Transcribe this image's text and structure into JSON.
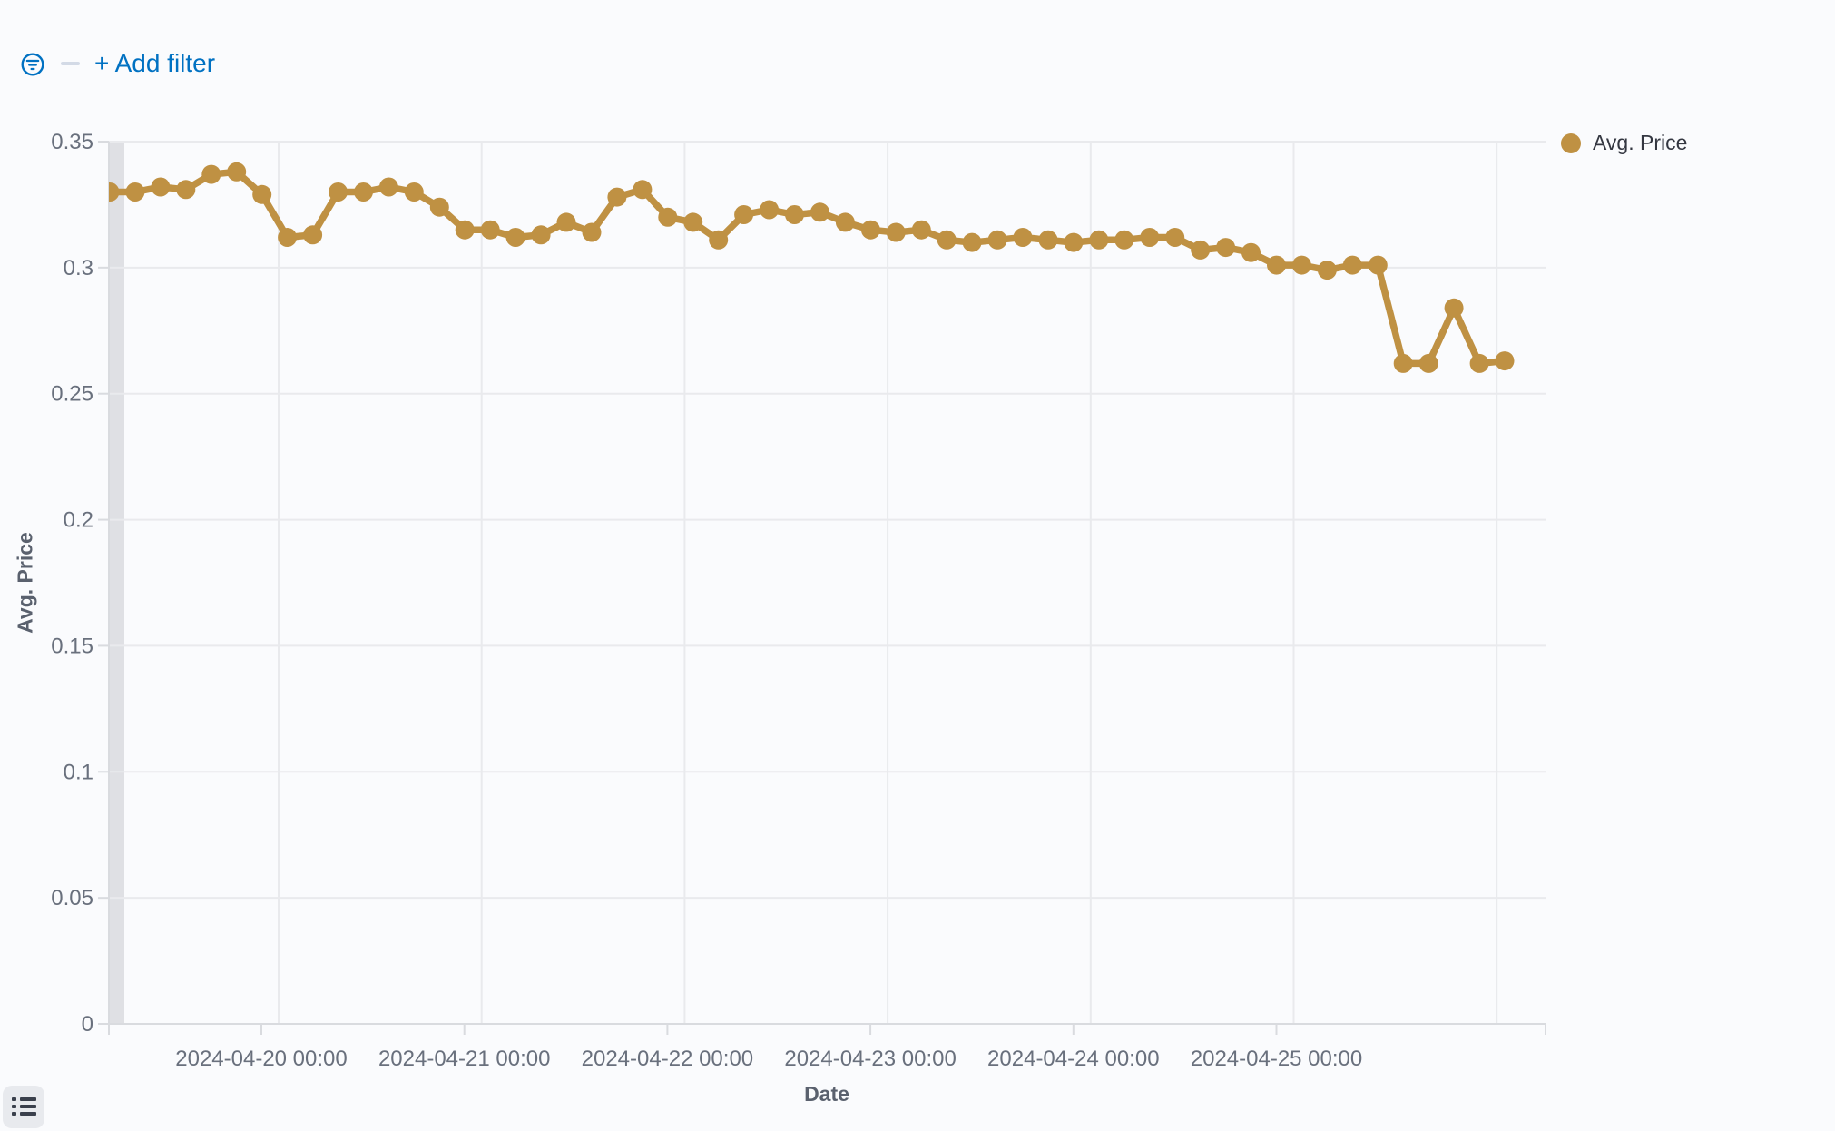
{
  "header": {
    "add_filter_label": "+ Add filter"
  },
  "icons": {
    "filter": "filter-in-circle-icon",
    "legend_toggle": "list-icon"
  },
  "colors": {
    "accent_blue": "#0071C2",
    "series_gold": "#BF9143",
    "axis_text": "#69707D",
    "axis_title_text": "#5A616E",
    "legend_text": "#343741",
    "gridline": "#E9EAED",
    "axis_line": "#D9DBDF",
    "partial_band": "#DFE0E4",
    "page_background": "#FAFBFD",
    "toggle_button_bg": "#E8EAEE",
    "toggle_icon": "#3A404C"
  },
  "legend": {
    "position": "right",
    "items": [
      {
        "label": "Avg. Price",
        "color": "#BF9143"
      }
    ]
  },
  "chart_data": {
    "type": "line",
    "title": "",
    "xlabel": "Date",
    "ylabel": "Avg. Price",
    "ylim": [
      0,
      0.35
    ],
    "y_ticks": [
      0.35,
      0.3,
      0.25,
      0.2,
      0.15,
      0.1,
      0.05,
      0
    ],
    "x_tick_labels": [
      "2024-04-20 00:00",
      "2024-04-21 00:00",
      "2024-04-22 00:00",
      "2024-04-23 00:00",
      "2024-04-24 00:00",
      "2024-04-25 00:00"
    ],
    "x_gridlines": 7,
    "interval": "3h",
    "grid": true,
    "legend_position": "right",
    "partial_bucket_band_left": true,
    "series": [
      {
        "name": "Avg. Price",
        "color": "#BF9143",
        "marker": "circle",
        "x": [
          "2024-04-19 03:00",
          "2024-04-19 06:00",
          "2024-04-19 09:00",
          "2024-04-19 12:00",
          "2024-04-19 15:00",
          "2024-04-19 18:00",
          "2024-04-19 21:00",
          "2024-04-20 00:00",
          "2024-04-20 03:00",
          "2024-04-20 06:00",
          "2024-04-20 09:00",
          "2024-04-20 12:00",
          "2024-04-20 15:00",
          "2024-04-20 18:00",
          "2024-04-20 21:00",
          "2024-04-21 00:00",
          "2024-04-21 03:00",
          "2024-04-21 06:00",
          "2024-04-21 09:00",
          "2024-04-21 12:00",
          "2024-04-21 15:00",
          "2024-04-21 18:00",
          "2024-04-21 21:00",
          "2024-04-22 00:00",
          "2024-04-22 03:00",
          "2024-04-22 06:00",
          "2024-04-22 09:00",
          "2024-04-22 12:00",
          "2024-04-22 15:00",
          "2024-04-22 18:00",
          "2024-04-22 21:00",
          "2024-04-23 00:00",
          "2024-04-23 03:00",
          "2024-04-23 06:00",
          "2024-04-23 09:00",
          "2024-04-23 12:00",
          "2024-04-23 15:00",
          "2024-04-23 18:00",
          "2024-04-23 21:00",
          "2024-04-24 00:00",
          "2024-04-24 03:00",
          "2024-04-24 06:00",
          "2024-04-24 09:00",
          "2024-04-24 12:00",
          "2024-04-24 15:00",
          "2024-04-24 18:00",
          "2024-04-24 21:00",
          "2024-04-25 00:00",
          "2024-04-25 03:00",
          "2024-04-25 06:00",
          "2024-04-25 09:00",
          "2024-04-25 12:00",
          "2024-04-25 15:00",
          "2024-04-25 18:00",
          "2024-04-25 21:00",
          "2024-04-26 00:00"
        ],
        "values": [
          0.33,
          0.33,
          0.332,
          0.331,
          0.337,
          0.338,
          0.329,
          0.312,
          0.313,
          0.33,
          0.33,
          0.332,
          0.33,
          0.324,
          0.315,
          0.315,
          0.312,
          0.313,
          0.318,
          0.314,
          0.328,
          0.331,
          0.32,
          0.318,
          0.311,
          0.321,
          0.323,
          0.321,
          0.322,
          0.318,
          0.315,
          0.314,
          0.315,
          0.311,
          0.31,
          0.311,
          0.312,
          0.311,
          0.31,
          0.311,
          0.311,
          0.312,
          0.312,
          0.307,
          0.308,
          0.306,
          0.301,
          0.301,
          0.299,
          0.301,
          0.301,
          0.262,
          0.262,
          0.284,
          0.262,
          0.263
        ]
      }
    ]
  }
}
